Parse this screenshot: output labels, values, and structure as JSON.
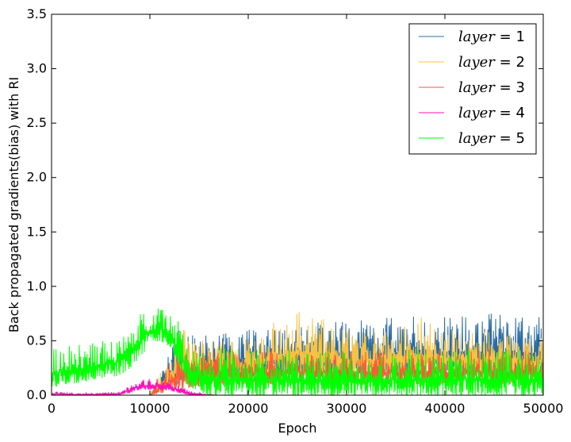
{
  "chart_data": {
    "type": "line",
    "title": "",
    "xlabel": "Epoch",
    "ylabel": "Back propagated gradients(bias) with RI",
    "xlim": [
      0,
      50000
    ],
    "ylim": [
      0.0,
      3.5
    ],
    "xticks": [
      "0",
      "10000",
      "20000",
      "30000",
      "40000",
      "50000"
    ],
    "yticks": [
      "0.0",
      "0.5",
      "1.0",
      "1.5",
      "2.0",
      "2.5",
      "3.0",
      "3.5"
    ],
    "grid": false,
    "legend_position": "top-right",
    "series": [
      {
        "name": "layer = 1",
        "legend_var": "layer",
        "legend_val": "= 1",
        "color": "#2b6ca3",
        "x": [
          0,
          5000,
          10000,
          13000,
          15000,
          20000,
          25000,
          30000,
          35000,
          40000,
          45000,
          49500,
          50000
        ],
        "low": [
          0.0,
          0.0,
          0.0,
          0.1,
          0.12,
          0.18,
          0.2,
          0.2,
          0.2,
          0.2,
          0.2,
          0.2,
          0.2
        ],
        "high": [
          0.0,
          0.0,
          0.0,
          0.6,
          0.55,
          0.6,
          0.65,
          0.7,
          0.72,
          0.75,
          0.75,
          0.7,
          0.88
        ]
      },
      {
        "name": "layer = 2",
        "legend_var": "layer",
        "legend_val": "= 2",
        "color": "#f7c243",
        "x": [
          0,
          5000,
          10000,
          13000,
          15000,
          20000,
          25000,
          30000,
          35000,
          37000,
          40000,
          45000,
          50000
        ],
        "low": [
          0.0,
          0.0,
          0.0,
          0.1,
          0.12,
          0.15,
          0.18,
          0.18,
          0.18,
          0.18,
          0.18,
          0.18,
          0.18
        ],
        "high": [
          0.0,
          0.0,
          0.0,
          0.62,
          0.55,
          0.55,
          0.82,
          0.6,
          0.6,
          0.75,
          0.6,
          0.58,
          0.55
        ]
      },
      {
        "name": "layer = 3",
        "legend_var": "layer",
        "legend_val": "= 3",
        "color": "#ff5a36",
        "x": [
          0,
          5000,
          10000,
          13000,
          15000,
          20000,
          25000,
          30000,
          35000,
          40000,
          45000,
          50000
        ],
        "low": [
          0.0,
          0.0,
          0.0,
          0.05,
          0.08,
          0.1,
          0.1,
          0.1,
          0.1,
          0.1,
          0.1,
          0.1
        ],
        "high": [
          0.0,
          0.0,
          0.0,
          0.45,
          0.4,
          0.4,
          0.42,
          0.42,
          0.42,
          0.42,
          0.42,
          0.42
        ]
      },
      {
        "name": "layer = 4",
        "legend_var": "layer",
        "legend_val": "= 4",
        "color": "#ff10b8",
        "x": [
          0,
          2000,
          5000,
          7000,
          8000,
          9000,
          10000,
          11000,
          12000,
          13000,
          14000,
          16000,
          17000,
          50000
        ],
        "low": [
          0.0,
          0.0,
          0.0,
          0.0,
          0.02,
          0.05,
          0.05,
          0.05,
          0.04,
          0.02,
          0.0,
          0.0,
          0.0,
          0.0
        ],
        "high": [
          0.04,
          0.02,
          0.02,
          0.04,
          0.1,
          0.14,
          0.15,
          0.16,
          0.14,
          0.1,
          0.04,
          0.01,
          0.0,
          0.0
        ]
      },
      {
        "name": "layer = 5",
        "legend_var": "layer",
        "legend_val": "= 5",
        "color": "#00ff00",
        "x": [
          0,
          1000,
          2000,
          5000,
          7000,
          8000,
          9000,
          10000,
          11000,
          12000,
          13000,
          14000,
          16000,
          20000,
          25000,
          30000,
          35000,
          40000,
          45000,
          50000
        ],
        "low": [
          0.0,
          0.1,
          0.1,
          0.15,
          0.18,
          0.25,
          0.35,
          0.45,
          0.5,
          0.45,
          0.25,
          0.05,
          0.0,
          0.0,
          0.0,
          0.0,
          0.0,
          0.0,
          0.0,
          0.0
        ],
        "high": [
          0.5,
          0.48,
          0.45,
          0.5,
          0.55,
          0.72,
          0.78,
          0.85,
          0.85,
          0.8,
          0.7,
          0.48,
          0.45,
          0.42,
          0.42,
          0.42,
          0.42,
          0.42,
          0.42,
          0.42
        ]
      }
    ]
  }
}
